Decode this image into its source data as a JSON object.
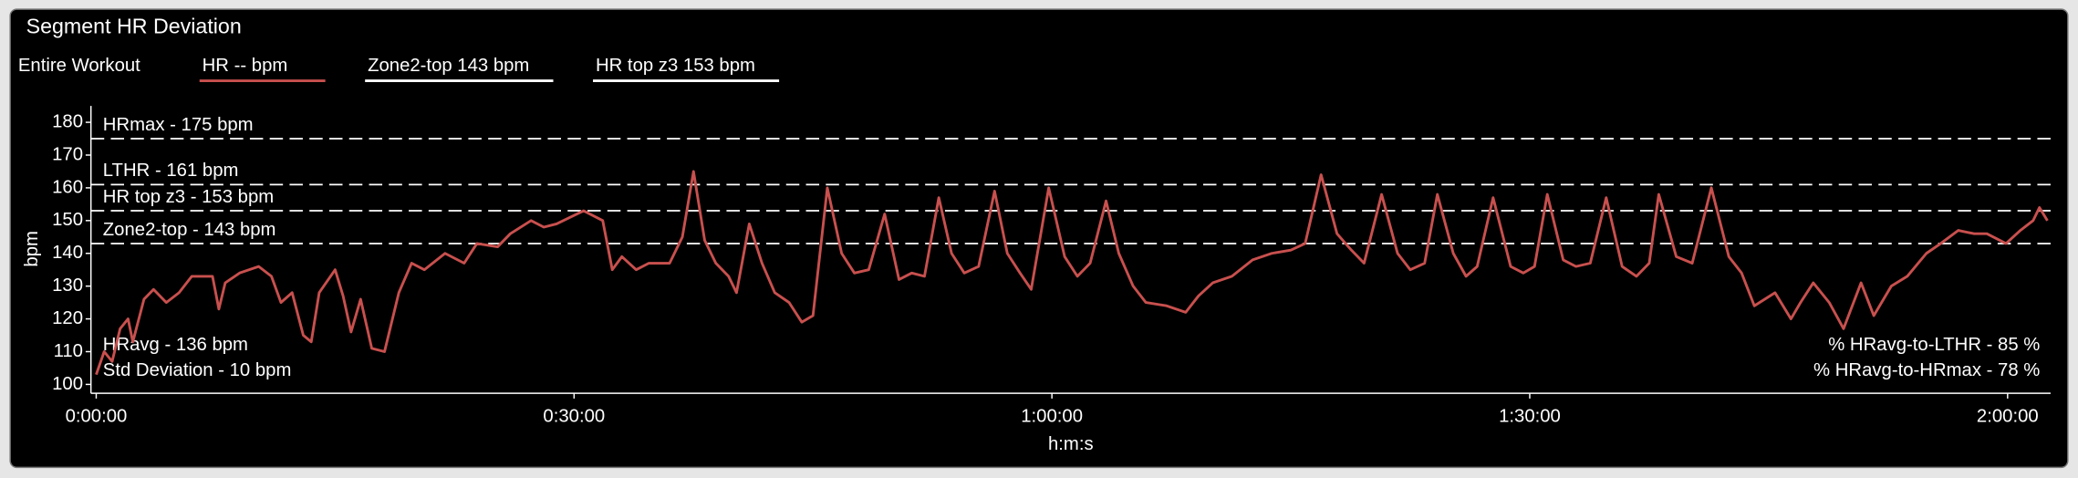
{
  "chart_data": {
    "type": "line",
    "title": "Segment HR Deviation",
    "legend_title": "Entire Workout",
    "x_label": "h:m:s",
    "y_label": "bpm",
    "x": [
      0,
      0.5,
      1,
      1.5,
      2,
      2.3,
      3,
      3.6,
      4.4,
      5.2,
      6,
      7.3,
      7.7,
      8.1,
      9,
      10.2,
      11,
      11.6,
      12.3,
      13,
      13.5,
      14,
      15,
      15.5,
      16,
      16.6,
      17.3,
      18.1,
      19,
      19.8,
      20.6,
      21.9,
      23.1,
      23.9,
      25.2,
      26,
      27.3,
      28.1,
      28.9,
      30.6,
      31.8,
      32.4,
      33,
      33.9,
      34.7,
      36,
      36.8,
      37.5,
      38.2,
      38.9,
      39.7,
      40.2,
      41,
      41.8,
      42.6,
      43.5,
      44.3,
      45,
      45.9,
      46.8,
      47.6,
      48.5,
      49.5,
      50.4,
      51.2,
      52,
      52.9,
      53.7,
      54.5,
      55.4,
      56.4,
      57.2,
      58,
      58.7,
      59.8,
      60.8,
      61.6,
      62.4,
      63.4,
      64.2,
      65.1,
      65.9,
      67.2,
      68.4,
      69.2,
      70.1,
      71.3,
      72.6,
      73.8,
      75,
      75.9,
      76.9,
      77.9,
      78.8,
      79.6,
      80.7,
      81.7,
      82.5,
      83.4,
      84.2,
      85.2,
      86,
      86.7,
      87.7,
      88.8,
      89.6,
      90.3,
      91.1,
      92.1,
      92.9,
      93.8,
      94.8,
      95.8,
      96.7,
      97.5,
      98.1,
      99.2,
      100.2,
      101.4,
      102.5,
      103.3,
      104.1,
      105.4,
      106.4,
      107,
      107.8,
      108.8,
      109.7,
      110.8,
      111.6,
      112.7,
      113.7,
      114.9,
      115.8,
      116.9,
      117.9,
      118.7,
      119.9,
      120.8,
      121.6,
      122,
      122.5
    ],
    "series": [
      {
        "name": "HR  -- bpm",
        "color": "#c8504e",
        "values": [
          103,
          110,
          107,
          117,
          120,
          113,
          126,
          129,
          125,
          128,
          133,
          133,
          123,
          131,
          134,
          136,
          133,
          125,
          128,
          115,
          113,
          128,
          135,
          127,
          116,
          126,
          111,
          110,
          128,
          137,
          135,
          140,
          137,
          143,
          142,
          146,
          150,
          148,
          149,
          153,
          150,
          135,
          139,
          135,
          137,
          137,
          145,
          165,
          144,
          137,
          133,
          128,
          149,
          137,
          128,
          125,
          119,
          121,
          160,
          140,
          134,
          135,
          152,
          132,
          134,
          133,
          157,
          140,
          134,
          136,
          159,
          140,
          134,
          129,
          160,
          139,
          133,
          137,
          156,
          140,
          130,
          125,
          124,
          122,
          127,
          131,
          133,
          138,
          140,
          141,
          143,
          164,
          146,
          141,
          137,
          158,
          140,
          135,
          137,
          158,
          140,
          133,
          136,
          157,
          136,
          134,
          136,
          158,
          138,
          136,
          137,
          157,
          136,
          133,
          137,
          158,
          139,
          137,
          160,
          139,
          134,
          124,
          128,
          120,
          125,
          131,
          125,
          117,
          131,
          121,
          130,
          133,
          140,
          143,
          147,
          146,
          146,
          143,
          147,
          150,
          154,
          150
        ]
      }
    ],
    "legend_lines": [
      {
        "name": "Zone2-top  143 bpm",
        "color": "#ffffff"
      },
      {
        "name": "HR top z3  153 bpm",
        "color": "#ffffff"
      }
    ],
    "reference_lines": [
      {
        "value": 175,
        "label": "HRmax - 175 bpm"
      },
      {
        "value": 161,
        "label": "LTHR - 161 bpm"
      },
      {
        "value": 153,
        "label": "HR top z3 - 153 bpm"
      },
      {
        "value": 143,
        "label": "Zone2-top - 143 bpm"
      }
    ],
    "annotations_left": [
      "HRavg - 136 bpm",
      "Std Deviation - 10 bpm"
    ],
    "annotations_right": [
      "% HRavg-to-LTHR - 85 %",
      "% HRavg-to-HRmax - 78 %"
    ],
    "xlim": [
      -0.33,
      122.7
    ],
    "ylim": [
      97.3,
      185
    ],
    "xticks": [
      {
        "value": 0,
        "label": "0:00:00"
      },
      {
        "value": 30,
        "label": "0:30:00"
      },
      {
        "value": 60,
        "label": "1:00:00"
      },
      {
        "value": 90,
        "label": "1:30:00"
      },
      {
        "value": 120,
        "label": "2:00:00"
      }
    ],
    "yticks": [
      100,
      110,
      120,
      130,
      140,
      150,
      160,
      170,
      180
    ]
  }
}
